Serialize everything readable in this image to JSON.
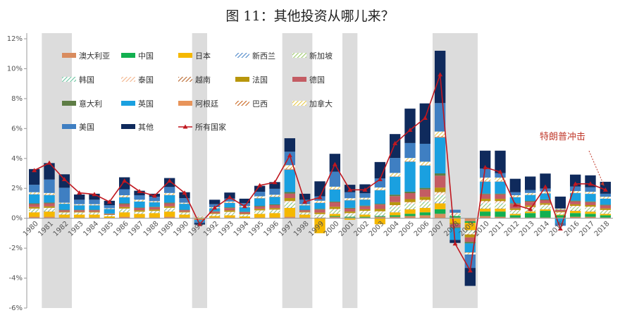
{
  "title": "图 11：其他投资从哪儿来？",
  "chart_data": {
    "type": "bar",
    "stacked": true,
    "ylim": [
      -6,
      12
    ],
    "yticks": [
      "-6%",
      "-4%",
      "-2%",
      "0%",
      "2%",
      "4%",
      "6%",
      "8%",
      "10%",
      "12%"
    ],
    "ytick_values": [
      -6,
      -4,
      -2,
      0,
      2,
      4,
      6,
      8,
      10,
      12
    ],
    "categories": [
      "1980",
      "1981",
      "1982",
      "1983",
      "1984",
      "1985",
      "1986",
      "1987",
      "1988",
      "1989",
      "1990",
      "1991",
      "1992",
      "1993",
      "1994",
      "1995",
      "1996",
      "1997",
      "1998",
      "1999",
      "2000",
      "2001",
      "2002",
      "2003",
      "2004",
      "2005",
      "2006",
      "2007",
      "2008",
      "2009",
      "2010",
      "2011",
      "2012",
      "2013",
      "2014",
      "2015",
      "2016",
      "2017",
      "2018"
    ],
    "shaded_periods": [
      [
        "1981",
        "1982"
      ],
      [
        "1991",
        "1991"
      ],
      [
        "1997",
        "1998"
      ],
      [
        "2001",
        "2001"
      ],
      [
        "2007",
        "2009"
      ]
    ],
    "series": [
      {
        "name": "澳大利亚",
        "color": "#d98c5f",
        "pattern": "solid",
        "values": [
          0.1,
          0.1,
          0.05,
          0.05,
          0.05,
          0.03,
          0.1,
          0.05,
          0.05,
          0.1,
          0.05,
          0.02,
          0.05,
          0.05,
          0.03,
          0.05,
          0.05,
          0.1,
          0.05,
          0.05,
          0.1,
          0.05,
          0.05,
          0.1,
          0.1,
          0.15,
          0.2,
          0.3,
          0.05,
          -0.2,
          0.15,
          0.1,
          0.05,
          0.05,
          0.05,
          0.05,
          0.1,
          0.1,
          0.05
        ]
      },
      {
        "name": "中国",
        "color": "#12b050",
        "pattern": "solid",
        "values": [
          0,
          0,
          0,
          0,
          0,
          0,
          0,
          0,
          0,
          0,
          0,
          0,
          0,
          0,
          0,
          0,
          0,
          0,
          0,
          0,
          0.05,
          0.05,
          0.05,
          0.05,
          0.1,
          0.15,
          0.2,
          0.3,
          0.1,
          -0.1,
          0.3,
          0.35,
          0.15,
          0.3,
          0.45,
          0.15,
          0.25,
          0.2,
          0.15
        ]
      },
      {
        "name": "日本",
        "color": "#f5b800",
        "pattern": "solid",
        "values": [
          0.3,
          0.35,
          0.2,
          0.2,
          0.2,
          0.1,
          0.3,
          0.25,
          0.3,
          0.35,
          0.2,
          -0.05,
          0.1,
          0.15,
          0.1,
          0.25,
          0.3,
          0.6,
          0.2,
          -1.0,
          0.15,
          -0.1,
          0.15,
          -0.4,
          0.2,
          0.3,
          0.3,
          0.4,
          -0.3,
          -0.5,
          0.2,
          0.2,
          0.1,
          0.1,
          0.1,
          0.05,
          0.15,
          0.15,
          0.1
        ]
      },
      {
        "name": "新西兰",
        "color": "#4a86c8",
        "pattern": "hatch",
        "values": [
          0.05,
          0.05,
          0.03,
          0.03,
          0.03,
          0.02,
          0.05,
          0.03,
          0.03,
          0.05,
          0.03,
          0.01,
          0.03,
          0.03,
          0.02,
          0.03,
          0.03,
          0.05,
          0.03,
          0.03,
          0.05,
          0.03,
          0.03,
          0.05,
          0.05,
          0.05,
          0.05,
          0.1,
          0.02,
          -0.05,
          0.05,
          0.05,
          0.03,
          0.03,
          0.03,
          0.02,
          0.05,
          0.05,
          0.03
        ]
      },
      {
        "name": "新加坡",
        "color": "#9cc96b",
        "pattern": "hatch",
        "values": [
          0.1,
          0.1,
          0.05,
          0.05,
          0.05,
          0.03,
          0.1,
          0.05,
          0.05,
          0.1,
          0.05,
          0.02,
          0.05,
          0.1,
          0.05,
          0.1,
          0.1,
          0.2,
          0.05,
          0.1,
          0.15,
          0.1,
          0.1,
          0.15,
          0.2,
          0.2,
          0.25,
          0.3,
          0.05,
          -0.1,
          0.2,
          0.2,
          0.1,
          0.15,
          0.15,
          0.05,
          0.15,
          0.15,
          0.1
        ]
      },
      {
        "name": "韩国",
        "color": "#6bc4a0",
        "pattern": "hatch",
        "values": [
          0.05,
          0.05,
          0.03,
          0.03,
          0.03,
          0.02,
          0.05,
          0.03,
          0.03,
          0.05,
          0.03,
          0.01,
          0.03,
          0.05,
          0.03,
          0.05,
          0.05,
          0.1,
          0.03,
          0.05,
          0.05,
          0.05,
          0.05,
          0.05,
          0.1,
          0.1,
          0.1,
          0.15,
          0.03,
          -0.05,
          0.1,
          0.1,
          0.05,
          0.05,
          0.05,
          0.03,
          0.05,
          0.05,
          0.05
        ]
      },
      {
        "name": "泰国",
        "color": "#f2b38a",
        "pattern": "hatch",
        "values": [
          0.05,
          0.05,
          0.03,
          0.03,
          0.03,
          0.02,
          0.05,
          0.03,
          0.03,
          0.05,
          0.03,
          0.01,
          0.03,
          0.05,
          0.03,
          0.05,
          0.05,
          0.1,
          0.03,
          0.05,
          0.05,
          0.05,
          0.05,
          0.05,
          0.1,
          0.1,
          0.1,
          0.15,
          0.03,
          -0.05,
          0.1,
          0.1,
          0.05,
          0.05,
          0.05,
          0.03,
          0.05,
          0.05,
          0.05
        ]
      },
      {
        "name": "越南",
        "color": "#b8652a",
        "pattern": "hatch",
        "values": [
          0,
          0,
          0,
          0,
          0,
          0,
          0,
          0,
          0,
          0,
          0,
          0,
          0,
          0,
          0,
          0,
          0,
          0,
          0,
          0,
          0.02,
          0.02,
          0.02,
          0.02,
          0.03,
          0.03,
          0.03,
          0.05,
          0.02,
          -0.03,
          0.05,
          0.05,
          0.03,
          0.03,
          0.03,
          0.02,
          0.03,
          0.03,
          0.03
        ]
      },
      {
        "name": "法国",
        "color": "#b8960c",
        "pattern": "solid",
        "values": [
          0.1,
          0.1,
          0.05,
          0.05,
          0.05,
          0.03,
          0.1,
          0.1,
          0.1,
          0.1,
          0.05,
          -0.02,
          0.05,
          0.1,
          0.05,
          0.1,
          0.1,
          0.2,
          0.05,
          0.1,
          0.15,
          0.1,
          0.1,
          0.15,
          0.2,
          0.2,
          0.2,
          0.3,
          -0.1,
          -0.2,
          0.15,
          0.15,
          0.1,
          0.1,
          0.1,
          0.05,
          0.1,
          0.1,
          0.1
        ]
      },
      {
        "name": "德国",
        "color": "#c45c63",
        "pattern": "solid",
        "values": [
          0.2,
          0.2,
          0.1,
          0.1,
          0.1,
          0.05,
          0.2,
          0.15,
          0.15,
          0.2,
          0.1,
          -0.05,
          0.1,
          0.15,
          0.1,
          0.15,
          0.2,
          0.3,
          0.1,
          0.2,
          0.3,
          0.2,
          0.2,
          0.3,
          0.4,
          0.4,
          0.5,
          0.8,
          -0.2,
          -0.3,
          0.3,
          0.3,
          0.3,
          0.25,
          0.2,
          0.1,
          0.2,
          0.2,
          0.2
        ]
      },
      {
        "name": "意大利",
        "color": "#5e7d45",
        "pattern": "solid",
        "values": [
          0.05,
          0.05,
          0.03,
          0.03,
          0.03,
          0.02,
          0.05,
          0.03,
          0.03,
          0.05,
          0.03,
          0.01,
          0.03,
          0.05,
          0.03,
          0.05,
          0.05,
          0.1,
          0.03,
          0.05,
          0.05,
          0.05,
          0.05,
          0.05,
          0.1,
          0.1,
          0.1,
          0.15,
          -0.05,
          -0.1,
          0.05,
          0.05,
          0.05,
          0.05,
          0.05,
          0.03,
          0.05,
          0.05,
          0.05
        ]
      },
      {
        "name": "英国",
        "color": "#1aa0e0",
        "pattern": "solid",
        "values": [
          0.6,
          0.5,
          0.4,
          0.3,
          0.3,
          0.3,
          0.4,
          0.4,
          0.3,
          0.5,
          0.4,
          -0.1,
          0.2,
          0.3,
          0.3,
          0.5,
          0.5,
          1.5,
          0.3,
          0.4,
          0.8,
          0.5,
          0.4,
          0.9,
          1.2,
          2.0,
          1.5,
          2.4,
          -0.8,
          -0.6,
          0.8,
          0.8,
          0.4,
          0.4,
          0.4,
          -0.3,
          0.5,
          0.5,
          0.4
        ]
      },
      {
        "name": "阿根廷",
        "color": "#e8945a",
        "pattern": "solid",
        "values": [
          0.02,
          0.02,
          0.01,
          0.01,
          0.01,
          0.01,
          0.02,
          0.01,
          0.01,
          0.02,
          0.01,
          0.01,
          0.01,
          0.02,
          0.01,
          0.02,
          0.02,
          0.05,
          0.01,
          0.02,
          0.02,
          0.02,
          0.01,
          0.02,
          0.02,
          0.02,
          0.02,
          0.05,
          0.01,
          -0.02,
          0.02,
          0.02,
          0.01,
          0.01,
          0.01,
          0.01,
          0.02,
          0.02,
          0.01
        ]
      },
      {
        "name": "巴西",
        "color": "#c8641e",
        "pattern": "hatch",
        "values": [
          0.02,
          0.02,
          0.01,
          0.01,
          0.01,
          0.01,
          0.02,
          0.01,
          0.01,
          0.02,
          0.01,
          0.01,
          0.01,
          0.02,
          0.01,
          0.02,
          0.02,
          0.05,
          0.01,
          0.02,
          0.02,
          0.02,
          0.01,
          0.02,
          0.03,
          0.03,
          0.03,
          0.05,
          0.01,
          -0.02,
          0.05,
          0.05,
          0.02,
          0.02,
          0.02,
          0.01,
          0.02,
          0.02,
          0.02
        ]
      },
      {
        "name": "加拿大",
        "color": "#e6c84a",
        "pattern": "hatch",
        "values": [
          0.1,
          0.1,
          0.05,
          0.05,
          0.05,
          0.03,
          0.1,
          0.1,
          0.05,
          0.1,
          0.05,
          0.02,
          0.05,
          0.05,
          0.05,
          0.1,
          0.1,
          0.2,
          0.05,
          0.1,
          0.15,
          0.1,
          0.1,
          0.15,
          0.2,
          0.2,
          0.2,
          0.3,
          0.05,
          -0.1,
          0.2,
          0.2,
          0.1,
          0.1,
          0.1,
          0.05,
          0.1,
          0.1,
          0.1
        ]
      },
      {
        "name": "美国",
        "color": "#3f7fc2",
        "pattern": "solid",
        "values": [
          0.5,
          0.9,
          1.0,
          0.3,
          0.3,
          0.2,
          0.4,
          0.3,
          0.3,
          0.4,
          0.3,
          -0.1,
          0.2,
          0.2,
          0.2,
          0.3,
          0.4,
          0.9,
          0.3,
          0.3,
          1.0,
          0.4,
          0.3,
          0.6,
          1.0,
          1.0,
          1.2,
          1.9,
          0.2,
          -0.9,
          0.6,
          0.3,
          0.2,
          0.2,
          0.2,
          -0.2,
          0.3,
          0.3,
          0.2
        ]
      },
      {
        "name": "其他",
        "color": "#0f2a5c",
        "pattern": "solid",
        "values": [
          1.05,
          1.1,
          0.9,
          0.35,
          0.4,
          0.3,
          0.8,
          0.3,
          0.2,
          0.6,
          0.4,
          -0.1,
          0.3,
          0.4,
          0.3,
          0.4,
          0.45,
          0.9,
          0.4,
          1.0,
          1.2,
          0.5,
          0.6,
          1.1,
          1.6,
          2.3,
          2.7,
          3.5,
          -0.2,
          -1.2,
          1.2,
          1.5,
          0.9,
          0.9,
          1.0,
          0.8,
          0.8,
          0.8,
          0.8
        ]
      }
    ],
    "line": {
      "name": "所有国家",
      "color": "#c0171f",
      "values": [
        3.2,
        3.7,
        2.6,
        1.7,
        1.6,
        1.1,
        2.5,
        1.8,
        1.5,
        2.5,
        1.7,
        -0.4,
        0.7,
        1.4,
        0.8,
        2.2,
        2.4,
        4.2,
        1.1,
        1.4,
        3.6,
        1.9,
        1.9,
        2.6,
        5.0,
        5.9,
        6.7,
        9.6,
        -1.7,
        -3.5,
        3.4,
        3.1,
        0.9,
        0.6,
        2.1,
        -0.7,
        2.3,
        2.3,
        1.9
      ]
    },
    "annotation": "特朗普冲击"
  }
}
